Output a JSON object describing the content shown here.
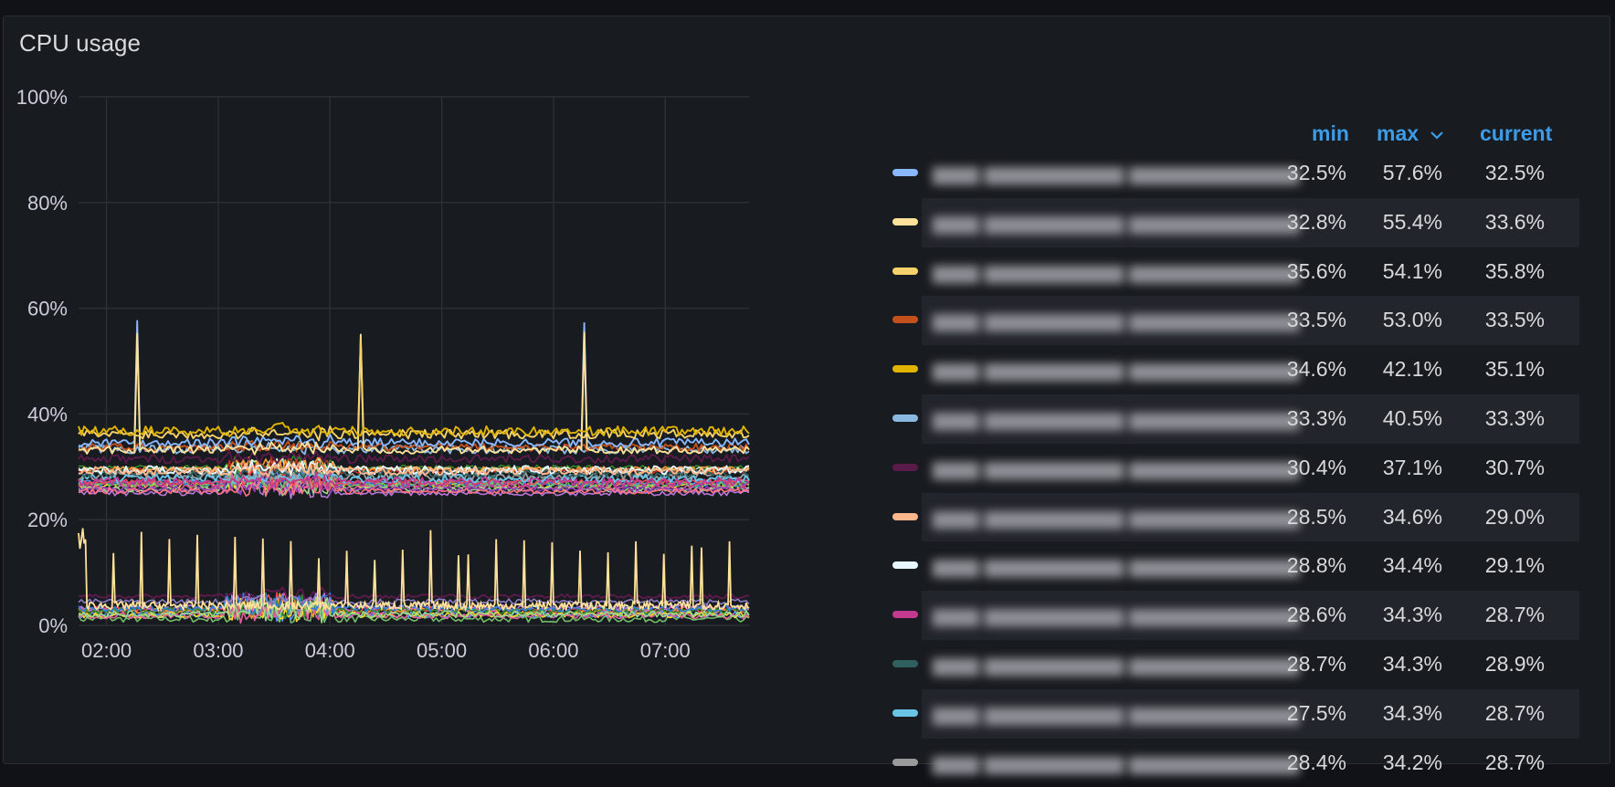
{
  "panel": {
    "title": "CPU usage"
  },
  "chart_data": {
    "type": "line",
    "title": "CPU usage",
    "xlabel": "",
    "ylabel": "",
    "x_ticks": [
      "02:00",
      "03:00",
      "04:00",
      "05:00",
      "06:00",
      "07:00"
    ],
    "x_range_hours": [
      1.75,
      7.75
    ],
    "y_ticks": [
      "0%",
      "20%",
      "40%",
      "60%",
      "80%",
      "100%"
    ],
    "ylim": [
      0,
      100
    ],
    "grid": true,
    "legend": "right-table",
    "legend_columns": [
      "min",
      "max",
      "current"
    ],
    "series": [
      {
        "color": "#8ab8ff",
        "min": "32.5%",
        "max": "57.6%",
        "current": "32.5%"
      },
      {
        "color": "#ffe29a",
        "min": "32.8%",
        "max": "55.4%",
        "current": "33.6%"
      },
      {
        "color": "#f6d36a",
        "min": "35.6%",
        "max": "54.1%",
        "current": "35.8%"
      },
      {
        "color": "#c4511c",
        "min": "33.5%",
        "max": "53.0%",
        "current": "33.5%"
      },
      {
        "color": "#e0b400",
        "min": "34.6%",
        "max": "42.1%",
        "current": "35.1%"
      },
      {
        "color": "#8ab8e0",
        "min": "33.3%",
        "max": "40.5%",
        "current": "33.3%"
      },
      {
        "color": "#5a1a4a",
        "min": "30.4%",
        "max": "37.1%",
        "current": "30.7%"
      },
      {
        "color": "#ffb88c",
        "min": "28.5%",
        "max": "34.6%",
        "current": "29.0%"
      },
      {
        "color": "#e6f7ff",
        "min": "28.8%",
        "max": "34.4%",
        "current": "29.1%"
      },
      {
        "color": "#c23a8f",
        "min": "28.6%",
        "max": "34.3%",
        "current": "28.7%"
      },
      {
        "color": "#2f5f5f",
        "min": "28.7%",
        "max": "34.3%",
        "current": "28.9%"
      },
      {
        "color": "#6ac4e6",
        "min": "27.5%",
        "max": "34.3%",
        "current": "28.7%"
      },
      {
        "color": "#9a9a9a",
        "min": "28.4%",
        "max": "34.2%",
        "current": "28.7%"
      }
    ]
  }
}
